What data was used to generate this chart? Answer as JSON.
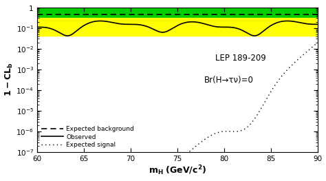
{
  "xlim": [
    60,
    90
  ],
  "ylim_log": [
    -7,
    0
  ],
  "xlabel": "m_H (GeV/c^2)",
  "ylabel": "1-CL_b",
  "green_band": [
    0.3,
    1.05
  ],
  "yellow_band": [
    0.042,
    0.3
  ],
  "green_color": "#00cc00",
  "yellow_color": "#ffff00",
  "annotation1": "LEP 189-209",
  "annotation2": "Br(H→τν)=0",
  "legend_observed": "Observed",
  "legend_expected_bg": "Expected background",
  "legend_expected_sig": "Expected signal"
}
